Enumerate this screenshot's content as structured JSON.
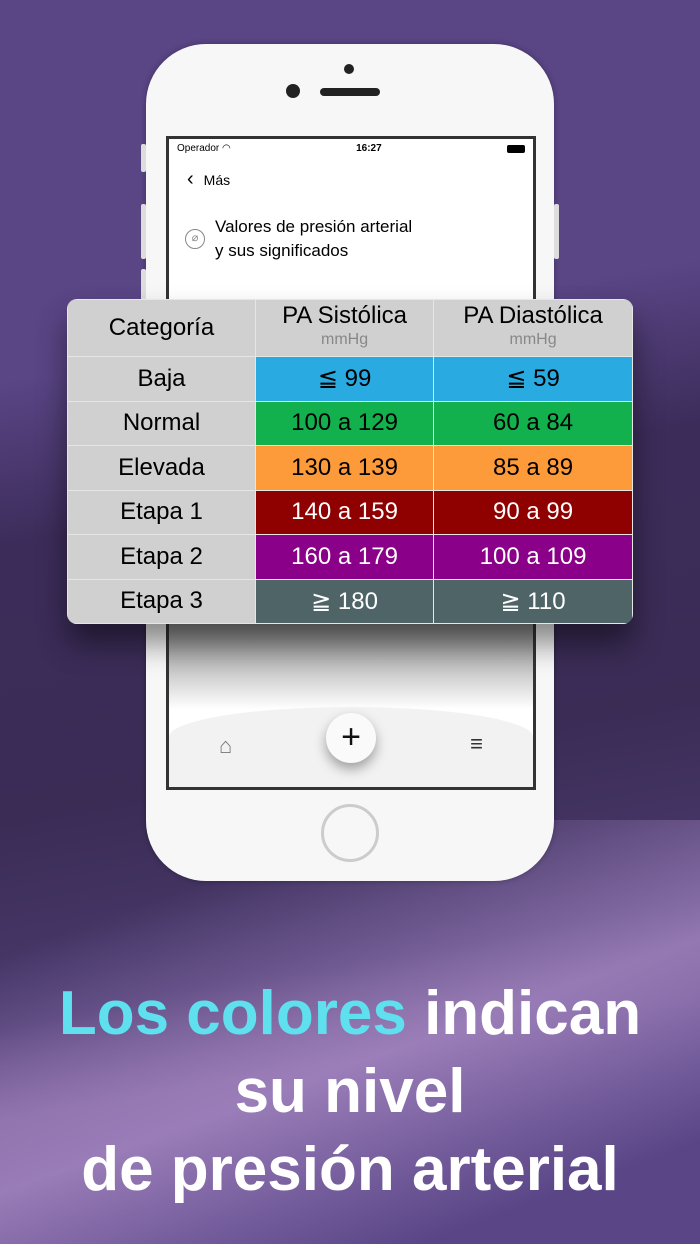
{
  "status": {
    "carrier": "Operador",
    "time": "16:27"
  },
  "nav": {
    "back_label": "Más"
  },
  "page": {
    "title_line1": "Valores de presión arterial",
    "title_line2": "y sus significados"
  },
  "table": {
    "headers": [
      "Categoría",
      "PA Sistólica",
      "PA Diastólica"
    ],
    "unit": "mmHg",
    "rows": [
      {
        "category": "Baja",
        "systolic": "≦ 99",
        "diastolic": "≦ 59",
        "color": "#29abe2",
        "text": "#000"
      },
      {
        "category": "Normal",
        "systolic": "100 a 129",
        "diastolic": "60 a 84",
        "color": "#12b14e",
        "text": "#000"
      },
      {
        "category": "Elevada",
        "systolic": "130 a 139",
        "diastolic": "85 a 89",
        "color": "#fd9a3a",
        "text": "#000"
      },
      {
        "category": "Etapa 1",
        "systolic": "140 a 159",
        "diastolic": "90 a 99",
        "color": "#8f0000",
        "text": "#fff"
      },
      {
        "category": "Etapa 2",
        "systolic": "160 a 179",
        "diastolic": "100 a 109",
        "color": "#8a0088",
        "text": "#fff"
      },
      {
        "category": "Etapa 3",
        "systolic": "≧ 180",
        "diastolic": "≧ 110",
        "color": "#4f6467",
        "text": "#fff"
      }
    ]
  },
  "tabbar": {
    "icons": [
      "home-icon",
      "plus-icon",
      "menu-icon"
    ]
  },
  "headline": {
    "highlight": "Los colores",
    "rest1": " indican",
    "line2": "su nivel",
    "line3": "de presión arterial"
  }
}
